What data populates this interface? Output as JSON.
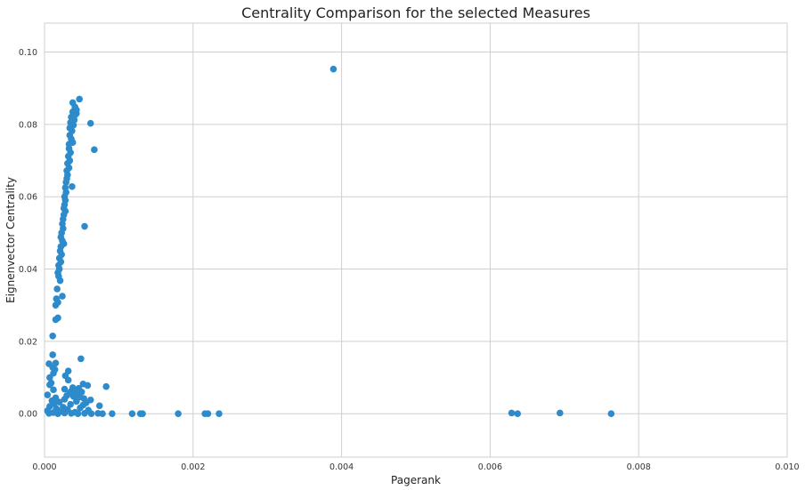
{
  "chart_data": {
    "type": "scatter",
    "title": "Centrality Comparison for the selected Measures",
    "xlabel": "Pagerank",
    "ylabel": "Eignenvector Centrality",
    "xlim": [
      0,
      0.01
    ],
    "ylim": [
      -0.012,
      0.108
    ],
    "xticks": [
      "0.000",
      "0.002",
      "0.004",
      "0.006",
      "0.008",
      "0.010"
    ],
    "yticks": [
      "0.00",
      "0.02",
      "0.04",
      "0.06",
      "0.08",
      "0.10"
    ],
    "grid": true,
    "colors": {
      "marker": "#2e8bcb",
      "grid": "#cfcfcf",
      "frame": "#cfcfcf",
      "background": "#ffffff"
    },
    "series": [
      {
        "points": [
          [
            0.00389,
            0.0953
          ],
          [
            0.00062,
            0.0803
          ],
          [
            0.00067,
            0.073
          ],
          [
            0.00054,
            0.0518
          ],
          [
            0.00047,
            0.087
          ],
          [
            0.00038,
            0.086
          ],
          [
            0.00041,
            0.0848
          ],
          [
            0.00043,
            0.084
          ],
          [
            0.00038,
            0.0835
          ],
          [
            0.00041,
            0.0826
          ],
          [
            0.00043,
            0.083
          ],
          [
            0.00036,
            0.082
          ],
          [
            0.0004,
            0.0812
          ],
          [
            0.00035,
            0.0805
          ],
          [
            0.00039,
            0.0798
          ],
          [
            0.00034,
            0.079
          ],
          [
            0.00037,
            0.0782
          ],
          [
            0.00034,
            0.077
          ],
          [
            0.00036,
            0.076
          ],
          [
            0.00038,
            0.075
          ],
          [
            0.00033,
            0.0745
          ],
          [
            0.00033,
            0.0733
          ],
          [
            0.00035,
            0.0722
          ],
          [
            0.00032,
            0.0712
          ],
          [
            0.00034,
            0.07
          ],
          [
            0.00031,
            0.0692
          ],
          [
            0.00033,
            0.068
          ],
          [
            0.0003,
            0.0672
          ],
          [
            0.00031,
            0.066
          ],
          [
            0.0003,
            0.065
          ],
          [
            0.00029,
            0.064
          ],
          [
            0.00037,
            0.0628
          ],
          [
            0.00028,
            0.0625
          ],
          [
            0.00029,
            0.0612
          ],
          [
            0.00027,
            0.06
          ],
          [
            0.00028,
            0.059
          ],
          [
            0.00027,
            0.0578
          ],
          [
            0.00026,
            0.0568
          ],
          [
            0.00028,
            0.056
          ],
          [
            0.00026,
            0.055
          ],
          [
            0.00025,
            0.0538
          ],
          [
            0.00024,
            0.0525
          ],
          [
            0.00025,
            0.0512
          ],
          [
            0.00023,
            0.05
          ],
          [
            0.00022,
            0.0488
          ],
          [
            0.00024,
            0.0478
          ],
          [
            0.00026,
            0.047
          ],
          [
            0.00022,
            0.0462
          ],
          [
            0.00021,
            0.045
          ],
          [
            0.00023,
            0.044
          ],
          [
            0.0002,
            0.043
          ],
          [
            0.00022,
            0.042
          ],
          [
            0.00019,
            0.041
          ],
          [
            0.0002,
            0.04
          ],
          [
            0.00018,
            0.039
          ],
          [
            0.00019,
            0.038
          ],
          [
            0.00021,
            0.0368
          ],
          [
            0.00017,
            0.0345
          ],
          [
            0.00024,
            0.0325
          ],
          [
            0.00016,
            0.0318
          ],
          [
            0.00018,
            0.0308
          ],
          [
            0.00015,
            0.03
          ],
          [
            0.00018,
            0.0265
          ],
          [
            0.00015,
            0.026
          ],
          [
            0.00011,
            0.0215
          ],
          [
            0.00011,
            0.0163
          ],
          [
            0.00049,
            0.0152
          ],
          [
            6e-05,
            0.0138
          ],
          [
            0.00015,
            0.014
          ],
          [
            0.00011,
            0.0128
          ],
          [
            0.00014,
            0.0122
          ],
          [
            0.00032,
            0.0118
          ],
          [
            0.00012,
            0.0112
          ],
          [
            0.00028,
            0.0105
          ],
          [
            7e-05,
            0.01
          ],
          [
            0.00032,
            0.0093
          ],
          [
            9e-05,
            0.0085
          ],
          [
            0.00052,
            0.0082
          ],
          [
            7e-05,
            0.008
          ],
          [
            0.00058,
            0.0078
          ],
          [
            0.00083,
            0.0075
          ],
          [
            0.00038,
            0.0072
          ],
          [
            0.00046,
            0.007
          ],
          [
            0.00027,
            0.0068
          ],
          [
            0.00012,
            0.0066
          ],
          [
            0.00042,
            0.0064
          ],
          [
            0.00036,
            0.0062
          ],
          [
            0.0005,
            0.006
          ],
          [
            0.00034,
            0.0058
          ],
          [
            0.00045,
            0.0055
          ],
          [
            4e-05,
            0.0052
          ],
          [
            0.0003,
            0.005
          ],
          [
            0.00039,
            0.0048
          ],
          [
            0.00047,
            0.0046
          ],
          [
            0.00015,
            0.0044
          ],
          [
            0.00053,
            0.0042
          ],
          [
            0.00027,
            0.004
          ],
          [
            0.00062,
            0.0038
          ],
          [
            0.0001,
            0.0036
          ],
          [
            0.00043,
            0.0034
          ],
          [
            0.0002,
            0.0032
          ],
          [
            0.00056,
            0.003
          ],
          [
            0.00013,
            0.0028
          ],
          [
            0.00035,
            0.0026
          ],
          [
            0.00052,
            0.0024
          ],
          [
            0.00074,
            0.0022
          ],
          [
            7e-05,
            0.002
          ],
          [
            0.00025,
            0.0018
          ],
          [
            0.00048,
            0.0016
          ],
          [
            0.00016,
            0.0014
          ],
          [
            0.00031,
            0.0012
          ],
          [
            0.00059,
            0.001
          ],
          [
            4e-05,
            0.0008
          ],
          [
            0.00023,
            0.0006
          ],
          [
            0.00041,
            0.0004
          ],
          [
            0.00012,
            0.0003
          ],
          [
            6e-05,
            0.0001
          ],
          [
            0.00018,
            0.0
          ],
          [
            0.00027,
            0.0002
          ],
          [
            0.00036,
            0.0001
          ],
          [
            0.00045,
            0.0
          ],
          [
            0.00054,
            0.0001
          ],
          [
            0.00063,
            0.0
          ],
          [
            0.00072,
            0.0001
          ],
          [
            0.00078,
            0.0
          ],
          [
            0.00091,
            0.0
          ],
          [
            0.00118,
            0.0
          ],
          [
            0.00129,
            0.0
          ],
          [
            0.00132,
            0.0
          ],
          [
            0.0018,
            0.0
          ],
          [
            0.00216,
            0.0
          ],
          [
            0.0022,
            0.0
          ],
          [
            0.00235,
            0.0
          ],
          [
            0.00629,
            0.0002
          ],
          [
            0.00637,
            0.0
          ],
          [
            0.00694,
            0.0002
          ],
          [
            0.00763,
            0.0
          ]
        ]
      }
    ]
  }
}
